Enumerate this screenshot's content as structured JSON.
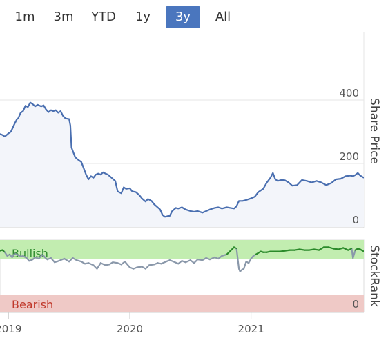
{
  "range_selector": {
    "buttons": [
      {
        "label": "1m",
        "active": false
      },
      {
        "label": "3m",
        "active": false
      },
      {
        "label": "YTD",
        "active": false
      },
      {
        "label": "1y",
        "active": false
      },
      {
        "label": "3y",
        "active": true
      },
      {
        "label": "All",
        "active": false
      }
    ]
  },
  "colors": {
    "active_button": "#4a76be",
    "price_line": "#4a6fb0",
    "price_fill": "#f3f5fa",
    "rank_line": "#8a98aa",
    "rank_bullish_line": "#2b8a2b",
    "bullish_band": "#c2edb0",
    "bearish_band": "#efc9c6",
    "bullish_text": "#2e8b2e",
    "bearish_text": "#c0392b"
  },
  "chart_data": [
    {
      "type": "line",
      "ylabel": "Share Price",
      "ylim": [
        0,
        590
      ],
      "yticks": [
        "0",
        "200",
        "400"
      ],
      "grid": true,
      "x_ticks": [
        "2019",
        "2020",
        "2021"
      ],
      "x_range": [
        2018.93,
        2021.93
      ],
      "x": [
        2018.93,
        2018.95,
        2018.97,
        2019.0,
        2019.02,
        2019.05,
        2019.07,
        2019.08,
        2019.1,
        2019.12,
        2019.14,
        2019.16,
        2019.18,
        2019.2,
        2019.22,
        2019.24,
        2019.27,
        2019.29,
        2019.31,
        2019.33,
        2019.35,
        2019.37,
        2019.39,
        2019.41,
        2019.43,
        2019.45,
        2019.47,
        2019.5,
        2019.51,
        2019.52,
        2019.55,
        2019.57,
        2019.6,
        2019.62,
        2019.64,
        2019.66,
        2019.68,
        2019.7,
        2019.72,
        2019.74,
        2019.76,
        2019.78,
        2019.8,
        2019.82,
        2019.85,
        2019.88,
        2019.9,
        2019.93,
        2019.95,
        2019.97,
        2020.0,
        2020.02,
        2020.05,
        2020.08,
        2020.1,
        2020.13,
        2020.15,
        2020.18,
        2020.2,
        2020.22,
        2020.25,
        2020.27,
        2020.29,
        2020.31,
        2020.33,
        2020.35,
        2020.38,
        2020.4,
        2020.43,
        2020.46,
        2020.5,
        2020.53,
        2020.56,
        2020.6,
        2020.63,
        2020.66,
        2020.7,
        2020.73,
        2020.76,
        2020.8,
        2020.83,
        2020.86,
        2020.88,
        2020.9,
        2020.93,
        2020.96,
        2021.0,
        2021.03,
        2021.06,
        2021.1,
        2021.13,
        2021.16,
        2021.18,
        2021.2,
        2021.22,
        2021.25,
        2021.28,
        2021.31,
        2021.34,
        2021.38,
        2021.42,
        2021.46,
        2021.5,
        2021.54,
        2021.58,
        2021.62,
        2021.66,
        2021.7,
        2021.74,
        2021.78,
        2021.82,
        2021.84,
        2021.86,
        2021.88,
        2021.9,
        2021.93
      ],
      "series": [
        {
          "values": [
            293,
            290,
            285,
            295,
            300,
            325,
            340,
            342,
            360,
            365,
            382,
            378,
            392,
            387,
            380,
            385,
            380,
            383,
            370,
            362,
            368,
            365,
            368,
            360,
            365,
            350,
            342,
            340,
            320,
            250,
            220,
            213,
            205,
            185,
            165,
            150,
            160,
            155,
            165,
            168,
            165,
            172,
            168,
            165,
            155,
            145,
            112,
            106,
            125,
            120,
            122,
            112,
            110,
            100,
            90,
            80,
            88,
            82,
            72,
            65,
            55,
            38,
            32,
            34,
            35,
            50,
            60,
            58,
            62,
            55,
            50,
            48,
            50,
            45,
            50,
            55,
            60,
            62,
            58,
            62,
            60,
            58,
            65,
            82,
            82,
            85,
            90,
            95,
            110,
            120,
            140,
            155,
            170,
            150,
            145,
            148,
            147,
            140,
            130,
            132,
            148,
            145,
            140,
            145,
            140,
            132,
            138,
            150,
            152,
            160,
            162,
            160,
            164,
            170,
            162,
            155
          ],
          "fill": true
        }
      ]
    },
    {
      "type": "line",
      "ylabel": "StockRank",
      "ylim": [
        0,
        100
      ],
      "yticks": [
        "0"
      ],
      "bands": [
        {
          "label": "Bullish",
          "from": 80,
          "to": 100
        },
        {
          "label": "Bearish",
          "from": 0,
          "to": 20
        }
      ],
      "x_range": [
        2018.93,
        2021.93
      ],
      "x": [
        2018.93,
        2018.95,
        2018.97,
        2018.99,
        2019.01,
        2019.03,
        2019.05,
        2019.08,
        2019.1,
        2019.12,
        2019.15,
        2019.17,
        2019.2,
        2019.22,
        2019.25,
        2019.28,
        2019.3,
        2019.32,
        2019.35,
        2019.38,
        2019.4,
        2019.43,
        2019.46,
        2019.5,
        2019.53,
        2019.56,
        2019.6,
        2019.63,
        2019.66,
        2019.7,
        2019.73,
        2019.76,
        2019.8,
        2019.83,
        2019.86,
        2019.9,
        2019.93,
        2019.96,
        2020.0,
        2020.03,
        2020.06,
        2020.1,
        2020.13,
        2020.16,
        2020.2,
        2020.23,
        2020.26,
        2020.3,
        2020.33,
        2020.36,
        2020.4,
        2020.43,
        2020.46,
        2020.5,
        2020.53,
        2020.56,
        2020.6,
        2020.63,
        2020.66,
        2020.7,
        2020.73,
        2020.76,
        2020.8,
        2020.83,
        2020.86,
        2020.88,
        2020.9,
        2020.91,
        2020.92,
        2020.94,
        2020.96,
        2020.98,
        2021.0,
        2021.02,
        2021.04,
        2021.06,
        2021.08,
        2021.1,
        2021.13,
        2021.16,
        2021.2,
        2021.24,
        2021.28,
        2021.32,
        2021.36,
        2021.4,
        2021.44,
        2021.48,
        2021.52,
        2021.56,
        2021.6,
        2021.64,
        2021.68,
        2021.72,
        2021.76,
        2021.8,
        2021.83,
        2021.84,
        2021.86,
        2021.88,
        2021.9,
        2021.93
      ],
      "series": [
        {
          "values": [
            85,
            86,
            83,
            78,
            80,
            76,
            81,
            79,
            77,
            78,
            75,
            71,
            73,
            76,
            74,
            80,
            76,
            73,
            75,
            69,
            70,
            72,
            74,
            70,
            75,
            72,
            70,
            67,
            68,
            65,
            60,
            68,
            65,
            66,
            69,
            68,
            66,
            70,
            62,
            60,
            62,
            63,
            60,
            65,
            66,
            68,
            67,
            70,
            72,
            70,
            67,
            71,
            69,
            72,
            68,
            73,
            72,
            75,
            73,
            76,
            74,
            78,
            80,
            85,
            90,
            88,
            60,
            56,
            58,
            60,
            70,
            68,
            74,
            78,
            80,
            82,
            84,
            83,
            83,
            84,
            84,
            84,
            85,
            86,
            86,
            87,
            86,
            86,
            87,
            86,
            90,
            90,
            88,
            87,
            89,
            86,
            88,
            75,
            86,
            88,
            87,
            84
          ],
          "bullish_threshold": 80
        }
      ]
    }
  ]
}
